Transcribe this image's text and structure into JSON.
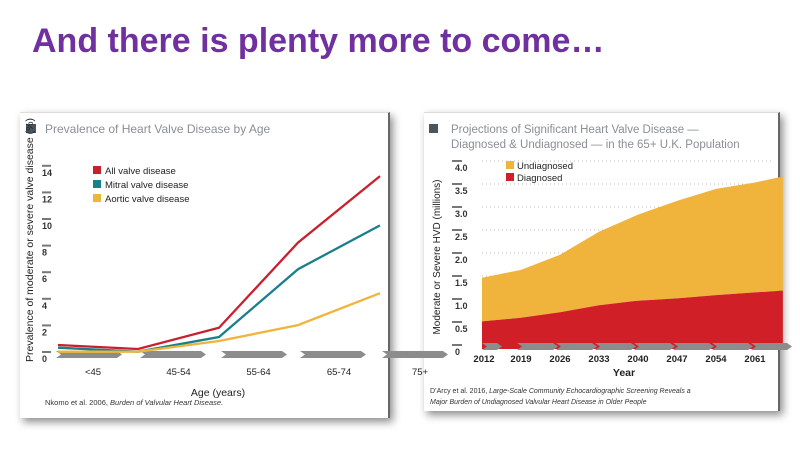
{
  "slide_title": "And there is plenty more to come…",
  "chart_data": [
    {
      "type": "line",
      "title": "Prevalence of Heart Valve Disease by Age",
      "xlabel": "Age (years)",
      "ylabel": "Prevalence of moderate or severe valve disease (%)",
      "categories": [
        "<45",
        "45-54",
        "55-64",
        "65-74",
        "75+"
      ],
      "yticks": [
        0,
        2,
        4,
        6,
        8,
        10,
        12,
        14
      ],
      "ylim": [
        0,
        14
      ],
      "legend_position": "top-left",
      "series": [
        {
          "name": "All valve disease",
          "color": "#c8202f",
          "values": [
            0.9,
            0.6,
            2.2,
            8.6,
            13.6
          ]
        },
        {
          "name": "Mitral valve disease",
          "color": "#1a7f8c",
          "values": [
            0.7,
            0.4,
            1.5,
            6.6,
            9.9
          ]
        },
        {
          "name": "Aortic valve disease",
          "color": "#f0b43c",
          "values": [
            0.4,
            0.4,
            1.2,
            2.4,
            4.8
          ]
        }
      ],
      "source": "Nkomo et al. 2006, ",
      "source_italic": "Burden of Valvular Heart Disease."
    },
    {
      "type": "area",
      "stacked": true,
      "title_line1": "Projections of Significant Heart Valve Disease  —",
      "title_line2": "Diagnosed & Undiagnosed  — in the 65+ U.K. Population",
      "xlabel": "Year",
      "ylabel": "Moderate or Severe HVD (millions)",
      "xticks": [
        "2012",
        "2019",
        "2026",
        "2033",
        "2040",
        "2047",
        "2054",
        "2061"
      ],
      "x": [
        2012,
        2019,
        2026,
        2033,
        2040,
        2047,
        2054,
        2061,
        2066
      ],
      "yticks": [
        "0",
        "0.5",
        "1.0",
        "1.5",
        "2.0",
        "2.5",
        "3.0",
        "3.5",
        "4.0"
      ],
      "ylim": [
        0,
        4.0
      ],
      "grid": "dotted horizontal",
      "legend_position": "top-left",
      "series": [
        {
          "name": "Undiagnosed",
          "color": "#f0b43c",
          "total_values": [
            1.55,
            1.72,
            2.05,
            2.55,
            2.92,
            3.22,
            3.48,
            3.62,
            3.75
          ]
        },
        {
          "name": "Diagnosed",
          "color": "#d01f27",
          "values": [
            0.6,
            0.68,
            0.8,
            0.95,
            1.05,
            1.1,
            1.17,
            1.23,
            1.27
          ]
        }
      ],
      "source_line1_plain": "D’Arcy et al. 2016, ",
      "source_line1_italic": "Large-Scale Community Echocardiographic Screening Reveals a",
      "source_line2_italic": "Major Burden of Undiagnosed Valvular Heart Disease in Older People"
    }
  ]
}
